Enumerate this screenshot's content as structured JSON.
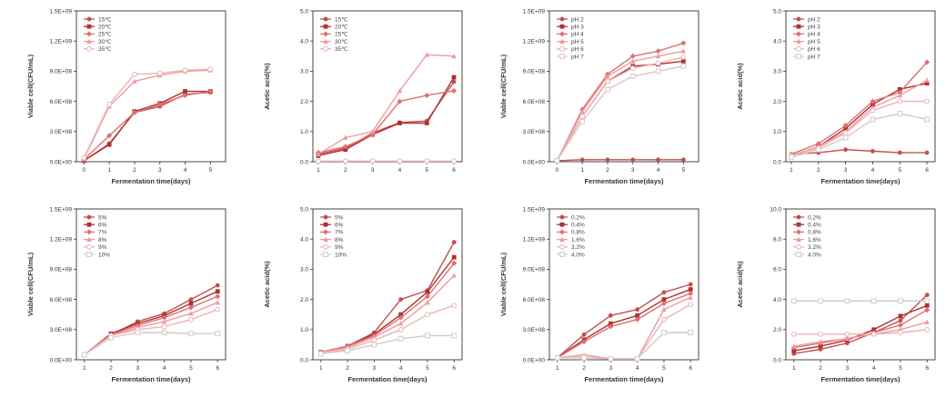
{
  "colors": {
    "series": [
      "#c0504d",
      "#b03030",
      "#e07070",
      "#f09aa0",
      "#e8b5b5",
      "#d8c8c8"
    ],
    "axis": "#333333"
  },
  "chart_data": [
    {
      "type": "line",
      "xlabel": "Fermentation time(days)",
      "ylabel": "Viable cell(CFU/mL)",
      "x": [
        0,
        1,
        2,
        3,
        4,
        5
      ],
      "xlim": [
        -0.3,
        5.6
      ],
      "ylim": [
        0,
        1500000000
      ],
      "yticks": [
        "0.0E+00",
        "3.0E+08",
        "6.0E+08",
        "9.0E+08",
        "1.2E+09",
        "1.5E+09"
      ],
      "xticks": [
        "0",
        "1",
        "2",
        "3",
        "4",
        "5"
      ],
      "legend": "top-left",
      "series": [
        {
          "name": "15℃",
          "values": [
            10000000.0,
            180000000.0,
            490000000.0,
            550000000.0,
            670000000.0,
            690000000.0
          ]
        },
        {
          "name": "20℃",
          "values": [
            10000000.0,
            170000000.0,
            500000000.0,
            580000000.0,
            700000000.0,
            700000000.0
          ]
        },
        {
          "name": "25℃",
          "values": [
            20000000.0,
            260000000.0,
            490000000.0,
            570000000.0,
            660000000.0,
            700000000.0
          ]
        },
        {
          "name": "30℃",
          "values": [
            30000000.0,
            550000000.0,
            800000000.0,
            860000000.0,
            900000000.0,
            910000000.0
          ]
        },
        {
          "name": "35℃",
          "values": [
            40000000.0,
            570000000.0,
            870000000.0,
            880000000.0,
            910000000.0,
            920000000.0
          ]
        }
      ]
    },
    {
      "type": "line",
      "xlabel": "",
      "ylabel": "Acetic acid(%)",
      "x": [
        1,
        2,
        3,
        4,
        5,
        6
      ],
      "xlim": [
        0.8,
        6.3
      ],
      "ylim": [
        0,
        5
      ],
      "yticks": [
        "0.0",
        "1.0",
        "2.0",
        "3.0",
        "4.0",
        "5.0"
      ],
      "xticks": [
        "1",
        "2",
        "3",
        "4",
        "5",
        "6"
      ],
      "legend": "top-left",
      "series": [
        {
          "name": "15℃",
          "values": [
            0.25,
            0.45,
            0.95,
            1.3,
            1.35,
            2.65
          ]
        },
        {
          "name": "20℃",
          "values": [
            0.2,
            0.4,
            0.9,
            1.28,
            1.28,
            2.8
          ]
        },
        {
          "name": "25℃",
          "values": [
            0.3,
            0.5,
            0.9,
            2.0,
            2.2,
            2.35
          ]
        },
        {
          "name": "30℃",
          "values": [
            0.25,
            0.8,
            1.0,
            2.35,
            3.55,
            3.5
          ]
        },
        {
          "name": "35℃",
          "values": [
            0.02,
            0.02,
            0.02,
            0.02,
            0.02,
            0.02
          ]
        }
      ]
    },
    {
      "type": "line",
      "xlabel": "Fermentation time(days)",
      "ylabel": "Viable cell(CFU/mL)",
      "x": [
        0,
        1,
        2,
        3,
        4,
        5
      ],
      "xlim": [
        -0.3,
        5.6
      ],
      "ylim": [
        0,
        1500000000
      ],
      "yticks": [
        "0.0E+00",
        "3.0E+08",
        "6.0E+08",
        "9.0E+08",
        "1.2E+09",
        "1.5E+09"
      ],
      "xticks": [
        "0",
        "1",
        "2",
        "3",
        "4",
        "5"
      ],
      "legend": "top-left",
      "series": [
        {
          "name": "pH 2",
          "values": [
            10000000.0,
            20000000.0,
            20000000.0,
            20000000.0,
            20000000.0,
            20000000.0
          ]
        },
        {
          "name": "pH 3",
          "values": [
            10000000.0,
            450000000.0,
            800000000.0,
            950000000.0,
            970000000.0,
            1000000000.0
          ]
        },
        {
          "name": "pH 4",
          "values": [
            10000000.0,
            520000000.0,
            870000000.0,
            1050000000.0,
            1100000000.0,
            1180000000.0
          ]
        },
        {
          "name": "pH 5",
          "values": [
            10000000.0,
            500000000.0,
            850000000.0,
            1000000000.0,
            1050000000.0,
            1100000000.0
          ]
        },
        {
          "name": "pH 6",
          "values": [
            10000000.0,
            450000000.0,
            800000000.0,
            930000000.0,
            980000000.0,
            1040000000.0
          ]
        },
        {
          "name": "pH 7",
          "values": [
            10000000.0,
            400000000.0,
            720000000.0,
            850000000.0,
            900000000.0,
            950000000.0
          ]
        }
      ]
    },
    {
      "type": "line",
      "xlabel": "Fermentation time(days)",
      "ylabel": "Acetic acid(%)",
      "x": [
        1,
        2,
        3,
        4,
        5,
        6
      ],
      "xlim": [
        0.8,
        6.3
      ],
      "ylim": [
        0,
        5
      ],
      "yticks": [
        "0.0",
        "1.0",
        "2.0",
        "3.0",
        "4.0",
        "5.0"
      ],
      "xticks": [
        "1",
        "2",
        "3",
        "4",
        "5",
        "6"
      ],
      "legend": "top-left",
      "series": [
        {
          "name": "pH 2",
          "values": [
            0.25,
            0.3,
            0.4,
            0.35,
            0.3,
            0.3
          ]
        },
        {
          "name": "pH 3",
          "values": [
            0.2,
            0.5,
            1.1,
            1.9,
            2.4,
            2.6
          ]
        },
        {
          "name": "pH 4",
          "values": [
            0.25,
            0.6,
            1.2,
            2.0,
            2.3,
            3.3
          ]
        },
        {
          "name": "pH 5",
          "values": [
            0.2,
            0.5,
            1.0,
            1.8,
            2.2,
            2.7
          ]
        },
        {
          "name": "pH 6",
          "values": [
            0.2,
            0.45,
            0.95,
            1.7,
            2.0,
            2.0
          ]
        },
        {
          "name": "pH 7",
          "values": [
            0.15,
            0.4,
            0.8,
            1.4,
            1.6,
            1.4
          ]
        }
      ]
    },
    {
      "type": "line",
      "xlabel": "Fermentation time(days)",
      "ylabel": "Viable cell(CFU/mL)",
      "x": [
        1,
        2,
        3,
        4,
        5,
        6
      ],
      "xlim": [
        0.7,
        6.3
      ],
      "ylim": [
        0,
        1500000000
      ],
      "yticks": [
        "0.0E+00",
        "3.0E+08",
        "6.0E+08",
        "9.0E+08",
        "1.2E+09",
        "1.5E+09"
      ],
      "xticks": [
        "1",
        "2",
        "3",
        "4",
        "5",
        "6"
      ],
      "legend": "top-left",
      "series": [
        {
          "name": "5%",
          "values": [
            50000000.0,
            250000000.0,
            380000000.0,
            460000000.0,
            600000000.0,
            740000000.0
          ]
        },
        {
          "name": "6%",
          "values": [
            50000000.0,
            260000000.0,
            360000000.0,
            440000000.0,
            560000000.0,
            680000000.0
          ]
        },
        {
          "name": "7%",
          "values": [
            50000000.0,
            250000000.0,
            340000000.0,
            420000000.0,
            520000000.0,
            630000000.0
          ]
        },
        {
          "name": "8%",
          "values": [
            50000000.0,
            240000000.0,
            320000000.0,
            380000000.0,
            460000000.0,
            570000000.0
          ]
        },
        {
          "name": "9%",
          "values": [
            50000000.0,
            240000000.0,
            300000000.0,
            330000000.0,
            400000000.0,
            500000000.0
          ]
        },
        {
          "name": "10%",
          "values": [
            50000000.0,
            220000000.0,
            270000000.0,
            270000000.0,
            260000000.0,
            260000000.0
          ]
        }
      ]
    },
    {
      "type": "line",
      "xlabel": "Fermentation time(days)",
      "ylabel": "Acetic acid(%)",
      "x": [
        1,
        2,
        3,
        4,
        5,
        6
      ],
      "xlim": [
        0.7,
        6.3
      ],
      "ylim": [
        0,
        5
      ],
      "yticks": [
        "0.0",
        "1.0",
        "2.0",
        "3.0",
        "4.0",
        "5.0"
      ],
      "xticks": [
        "1",
        "2",
        "3",
        "4",
        "5",
        "6"
      ],
      "legend": "top-left",
      "series": [
        {
          "name": "5%",
          "values": [
            0.25,
            0.45,
            0.9,
            2.0,
            2.3,
            3.9
          ]
        },
        {
          "name": "6%",
          "values": [
            0.25,
            0.45,
            0.85,
            1.5,
            2.25,
            3.4
          ]
        },
        {
          "name": "7%",
          "values": [
            0.25,
            0.45,
            0.8,
            1.4,
            2.1,
            3.2
          ]
        },
        {
          "name": "8%",
          "values": [
            0.25,
            0.4,
            0.75,
            1.2,
            1.9,
            2.8
          ]
        },
        {
          "name": "9%",
          "values": [
            0.2,
            0.35,
            0.65,
            1.0,
            1.5,
            1.8
          ]
        },
        {
          "name": "10%",
          "values": [
            0.2,
            0.3,
            0.5,
            0.7,
            0.8,
            0.8
          ]
        }
      ]
    },
    {
      "type": "line",
      "xlabel": "Fermentation time(days)",
      "ylabel": "Viable cell(CFU/mL)",
      "x": [
        1,
        2,
        3,
        4,
        5,
        6
      ],
      "xlim": [
        0.7,
        6.3
      ],
      "ylim": [
        0,
        1500000000
      ],
      "yticks": [
        "0.0E+00",
        "3.0E+08",
        "6.0E+08",
        "9.0E+08",
        "1.2E+09",
        "1.5E+09"
      ],
      "xticks": [
        "1",
        "2",
        "3",
        "4",
        "5",
        "6"
      ],
      "legend": "top-left",
      "series": [
        {
          "name": "0.2%",
          "values": [
            20000000.0,
            250000000.0,
            440000000.0,
            500000000.0,
            670000000.0,
            750000000.0
          ]
        },
        {
          "name": "0.4%",
          "values": [
            20000000.0,
            200000000.0,
            360000000.0,
            440000000.0,
            600000000.0,
            700000000.0
          ]
        },
        {
          "name": "0.8%",
          "values": [
            20000000.0,
            180000000.0,
            330000000.0,
            400000000.0,
            560000000.0,
            660000000.0
          ]
        },
        {
          "name": "1.6%",
          "values": [
            20000000.0,
            50000000.0,
            10000000.0,
            10000000.0,
            500000000.0,
            620000000.0
          ]
        },
        {
          "name": "3.2%",
          "values": [
            20000000.0,
            30000000.0,
            10000000.0,
            10000000.0,
            400000000.0,
            550000000.0
          ]
        },
        {
          "name": "4.0%",
          "values": [
            20000000.0,
            20000000.0,
            10000000.0,
            10000000.0,
            270000000.0,
            270000000.0
          ]
        }
      ]
    },
    {
      "type": "line",
      "xlabel": "Fermentation time(days)",
      "ylabel": "Acetic acid(%)",
      "x": [
        1,
        2,
        3,
        4,
        5,
        6
      ],
      "xlim": [
        0.7,
        6.3
      ],
      "ylim": [
        0,
        10
      ],
      "yticks": [
        "0.0",
        "2.0",
        "4.0",
        "6.0",
        "8.0",
        "10.0"
      ],
      "xticks": [
        "1",
        "2",
        "3",
        "4",
        "5",
        "6"
      ],
      "legend": "top-left",
      "series": [
        {
          "name": "0.2%",
          "values": [
            0.4,
            0.7,
            1.1,
            1.8,
            2.6,
            4.3
          ]
        },
        {
          "name": "0.4%",
          "values": [
            0.6,
            0.9,
            1.3,
            2.0,
            2.9,
            3.6
          ]
        },
        {
          "name": "0.8%",
          "values": [
            0.8,
            1.1,
            1.4,
            1.8,
            2.3,
            3.3
          ]
        },
        {
          "name": "1.6%",
          "values": [
            0.9,
            1.2,
            1.4,
            1.7,
            2.0,
            2.5
          ]
        },
        {
          "name": "3.2%",
          "values": [
            1.7,
            1.7,
            1.7,
            1.7,
            1.8,
            2.0
          ]
        },
        {
          "name": "4.0%",
          "values": [
            3.9,
            3.9,
            3.9,
            3.9,
            3.9,
            3.9
          ]
        }
      ]
    }
  ]
}
